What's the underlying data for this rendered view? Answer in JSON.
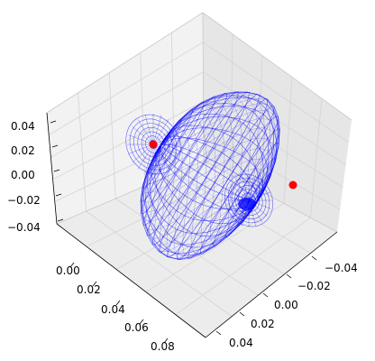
{
  "chart_data": {
    "type": "3d-wireframe-surface",
    "title": "",
    "xlabel": "",
    "ylabel": "",
    "zlabel": "",
    "grid": true,
    "axes": {
      "x": {
        "ticks": [
          "0.00",
          "0.02",
          "0.04",
          "0.06",
          "0.08"
        ],
        "range": [
          -0.01,
          0.09
        ]
      },
      "y": {
        "ticks": [
          "−0.04",
          "−0.02",
          "0.00",
          "0.02",
          "0.04"
        ],
        "range": [
          -0.05,
          0.05
        ]
      },
      "z": {
        "ticks": [
          "0.04",
          "0.02",
          "0.00",
          "−0.02",
          "−0.04"
        ],
        "range": [
          -0.05,
          0.05
        ]
      }
    },
    "surface": {
      "color": "#0000ff",
      "style": "wireframe"
    },
    "highlight_points": {
      "color": "#ff0000",
      "count": 2
    }
  }
}
